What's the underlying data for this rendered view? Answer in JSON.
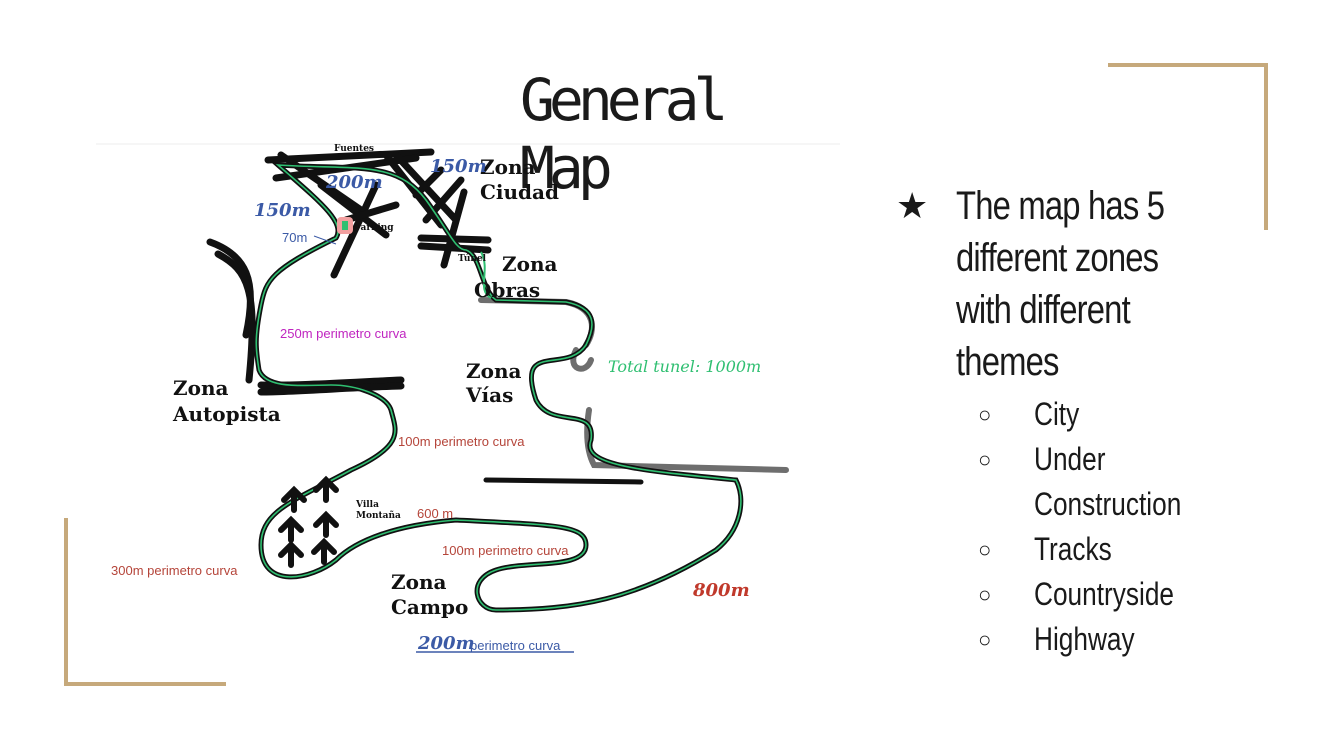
{
  "slide": {
    "title": "General Map",
    "bullet_main": "The map has 5 different zones with different themes",
    "sub_bullets": [
      "City",
      "Under Construction",
      "Tracks",
      "Countryside",
      "Highway"
    ]
  },
  "map": {
    "zones": {
      "ciudad": [
        "Zona",
        "Ciudad"
      ],
      "obras": [
        "Zona",
        "Obras"
      ],
      "vias": [
        "Zona",
        "Vías"
      ],
      "autopista": [
        "Zona",
        "Autopista"
      ],
      "campo": [
        "Zona",
        "Campo"
      ]
    },
    "places": {
      "fuentes": "Fuentes",
      "parking": "Parking",
      "tunel": "Túnel",
      "villa": [
        "Villa",
        "Montaña"
      ]
    },
    "measures": {
      "m150_top": "150m",
      "m200_top": "200m",
      "m150_left": "150m",
      "m70": "70m",
      "p250": "250m perimetro curva",
      "total_tunel": "Total tunel: 1000m",
      "p100_a": "100m perimetro curva",
      "m600": "600 m",
      "p100_b": "100m perimetro curva",
      "p300": "300m perimetro curva",
      "m800": "800m",
      "m200_bottom": "200m",
      "p_bottom": "perimetro curva"
    },
    "colors": {
      "road": "#111111",
      "track": "#2fbf71",
      "construction_road": "#6e6e6e",
      "accent": "#c6a97b"
    }
  }
}
